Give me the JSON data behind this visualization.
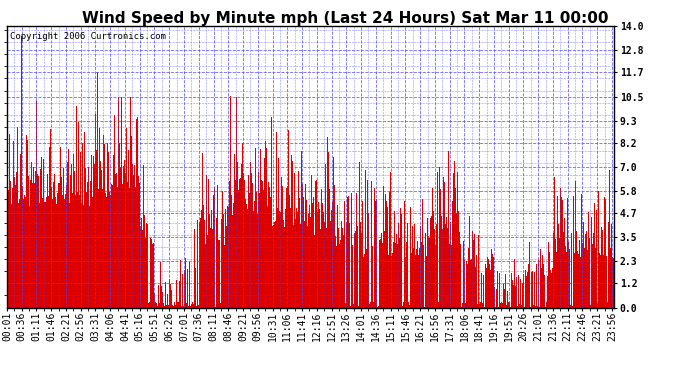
{
  "title": "Wind Speed by Minute mph (Last 24 Hours) Sat Mar 11 00:00",
  "copyright": "Copyright 2006 Curtronics.com",
  "yticks": [
    0.0,
    1.2,
    2.3,
    3.5,
    4.7,
    5.8,
    7.0,
    8.2,
    9.3,
    10.5,
    11.7,
    12.8,
    14.0
  ],
  "ylim": [
    0.0,
    14.0
  ],
  "bar_color": "#dd0000",
  "bg_color": "#ffffff",
  "grid_color": "#4444ff",
  "title_fontsize": 11,
  "tick_fontsize": 7,
  "copyright_fontsize": 6.5,
  "total_minutes": 1440,
  "xtick_labels": [
    "00:01",
    "00:36",
    "01:11",
    "01:46",
    "02:21",
    "02:56",
    "03:31",
    "04:06",
    "04:41",
    "05:16",
    "05:51",
    "06:26",
    "07:01",
    "07:36",
    "08:11",
    "08:46",
    "09:21",
    "09:56",
    "10:31",
    "11:06",
    "11:41",
    "12:16",
    "12:51",
    "13:26",
    "14:01",
    "14:36",
    "15:11",
    "15:46",
    "16:21",
    "16:56",
    "17:31",
    "18:06",
    "18:41",
    "19:16",
    "19:51",
    "20:26",
    "21:01",
    "21:36",
    "22:11",
    "22:46",
    "23:21",
    "23:56"
  ]
}
